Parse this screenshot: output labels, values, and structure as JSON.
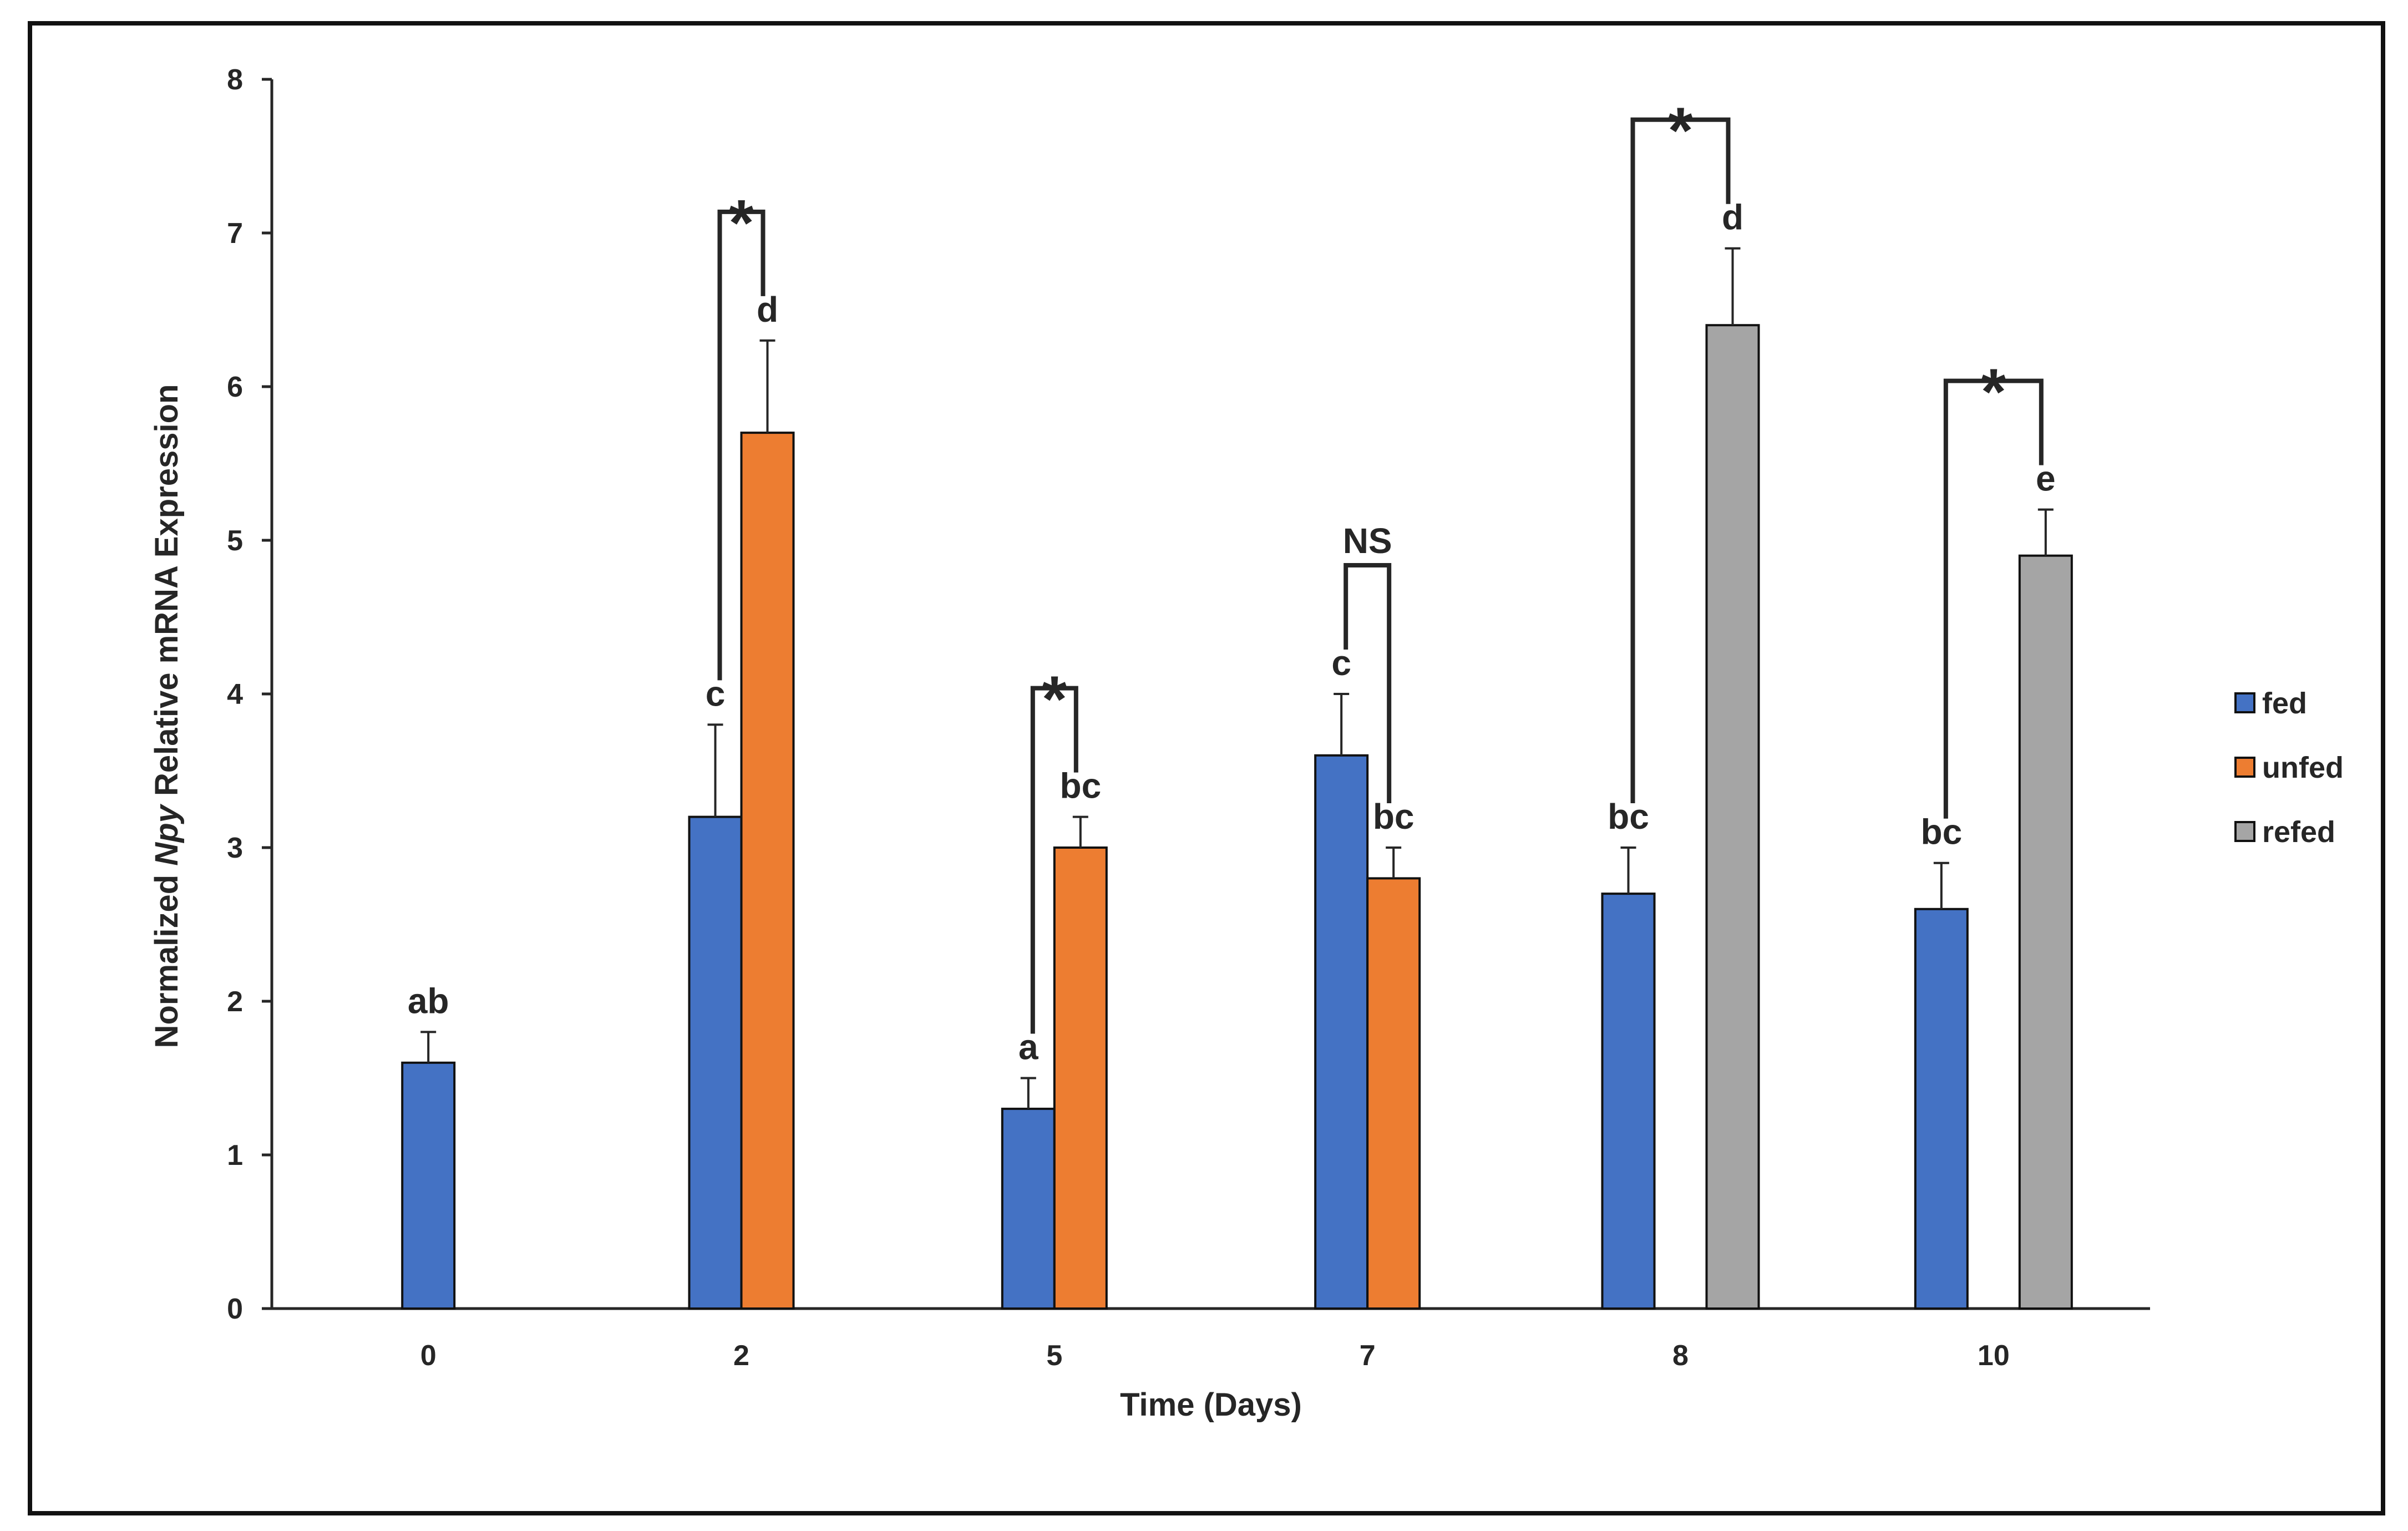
{
  "chart_data": {
    "type": "bar",
    "title": "",
    "xlabel": "Time (Days)",
    "ylabel_parts": [
      "Normalized ",
      "Npy",
      " Relative mRNA Expression"
    ],
    "ylim": [
      0,
      8
    ],
    "yticks": [
      "0",
      "1",
      "2",
      "3",
      "4",
      "5",
      "6",
      "7",
      "8"
    ],
    "categories": [
      "0",
      "2",
      "5",
      "7",
      "8",
      "10"
    ],
    "series": [
      {
        "name": "fed",
        "color": "#4472C4",
        "values": [
          1.6,
          3.2,
          1.3,
          3.6,
          2.7,
          2.6
        ],
        "errors": [
          0.2,
          0.6,
          0.2,
          0.4,
          0.3,
          0.3
        ],
        "letters": [
          "ab",
          "c",
          "a",
          "c",
          "bc",
          "bc"
        ]
      },
      {
        "name": "unfed",
        "color": "#ED7D31",
        "values": [
          null,
          5.7,
          3.0,
          2.8,
          null,
          null
        ],
        "errors": [
          null,
          0.6,
          0.2,
          0.2,
          null,
          null
        ],
        "letters": [
          null,
          "d",
          "bc",
          "bc",
          null,
          null
        ]
      },
      {
        "name": "refed",
        "color": "#A5A5A5",
        "values": [
          null,
          null,
          null,
          null,
          6.4,
          4.9
        ],
        "errors": [
          null,
          null,
          null,
          null,
          0.5,
          0.3
        ],
        "letters": [
          null,
          null,
          null,
          null,
          "d",
          "e"
        ]
      }
    ],
    "comparisons": [
      {
        "category": "2",
        "from": "fed",
        "to": "unfed",
        "label": "*"
      },
      {
        "category": "5",
        "from": "fed",
        "to": "unfed",
        "label": "*"
      },
      {
        "category": "7",
        "from": "fed",
        "to": "unfed",
        "label": "NS"
      },
      {
        "category": "8",
        "from": "fed",
        "to": "refed",
        "label": "*"
      },
      {
        "category": "10",
        "from": "fed",
        "to": "refed",
        "label": "*"
      }
    ],
    "legend": [
      "fed",
      "unfed",
      "refed"
    ],
    "legend_position": "right",
    "grid": false
  }
}
